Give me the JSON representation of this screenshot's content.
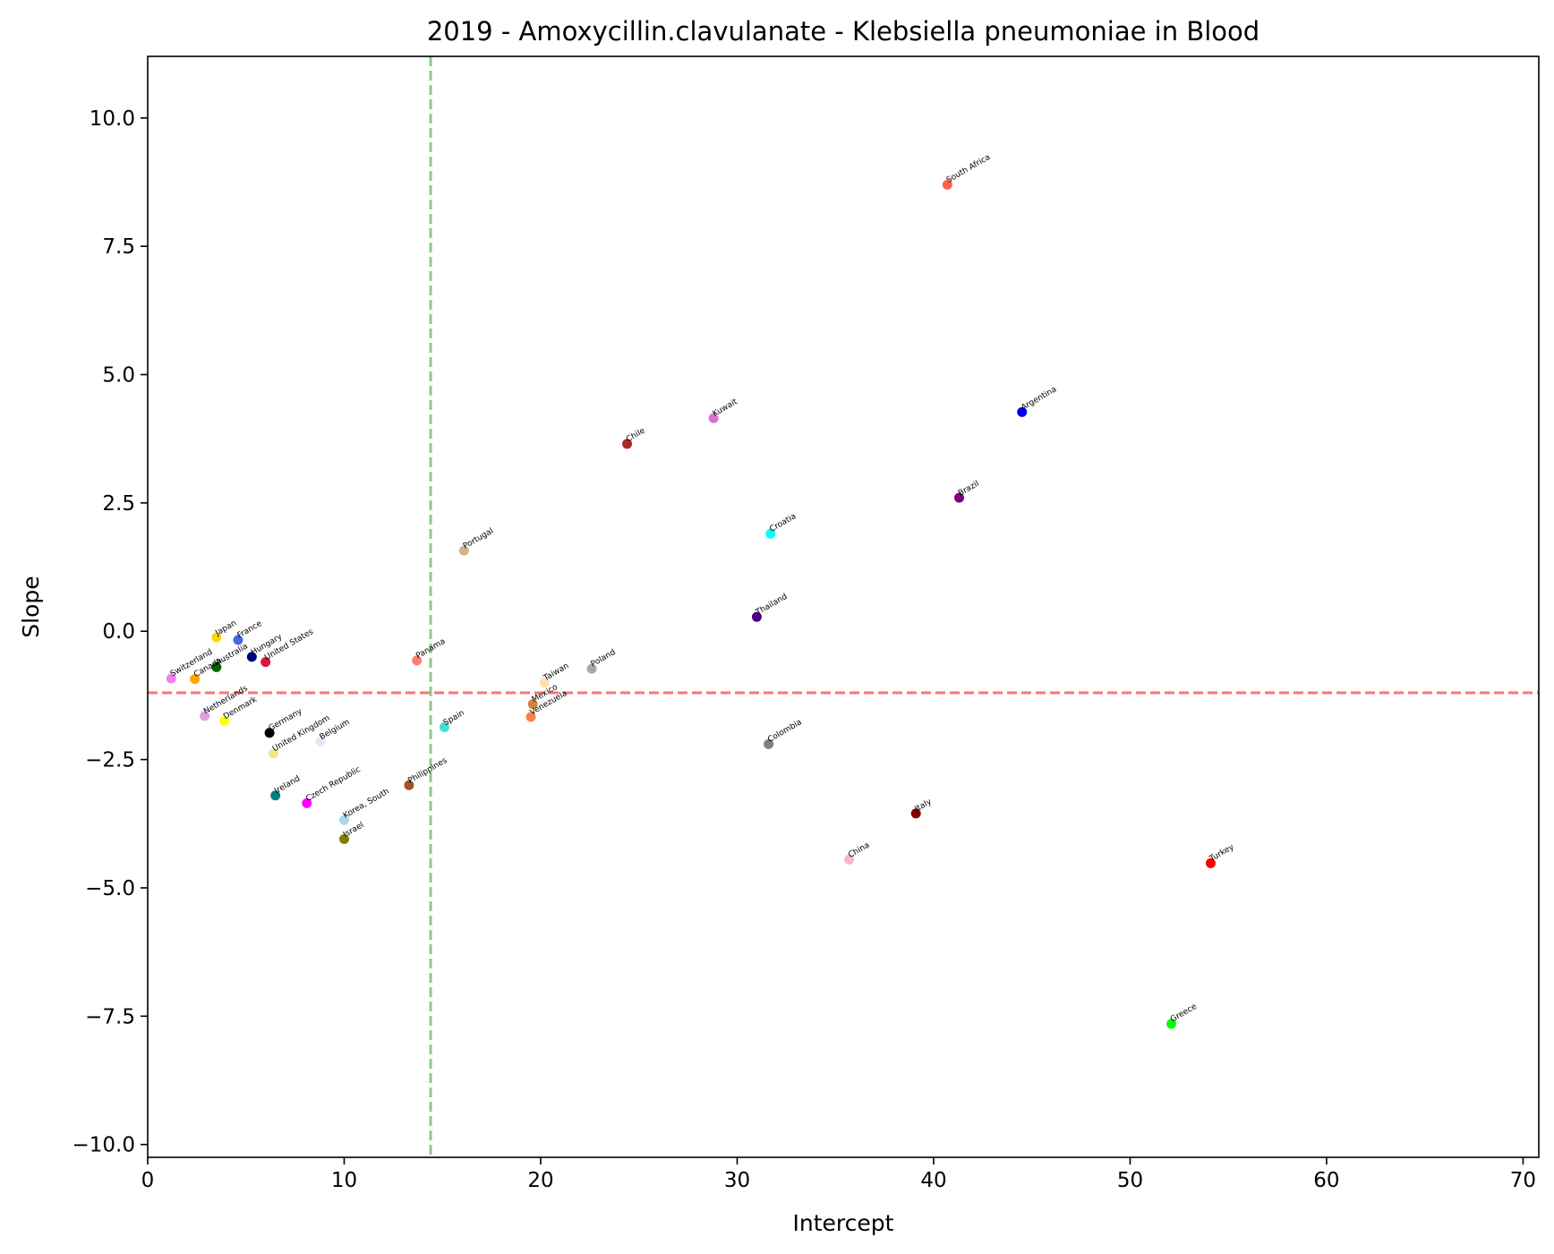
{
  "chart_data": {
    "type": "scatter",
    "title": "2019 - Amoxycillin.clavulanate - Klebsiella pneumoniae in Blood",
    "xlabel": "Intercept",
    "ylabel": "Slope",
    "xlim": [
      0,
      70.8
    ],
    "ylim": [
      -10.25,
      11.2
    ],
    "xticks": [
      0,
      10,
      20,
      30,
      40,
      50,
      60,
      70
    ],
    "xtick_labels": [
      "0",
      "10",
      "20",
      "30",
      "40",
      "50",
      "60",
      "70"
    ],
    "yticks": [
      -10.0,
      -7.5,
      -5.0,
      -2.5,
      0.0,
      2.5,
      5.0,
      7.5,
      10.0
    ],
    "ytick_labels": [
      "−10.0",
      "−7.5",
      "−5.0",
      "−2.5",
      "0.0",
      "2.5",
      "5.0",
      "7.5",
      "10.0"
    ],
    "grid": false,
    "reference_lines": [
      {
        "orientation": "vertical",
        "value": 14.4,
        "color": "#2ca02c",
        "style": "dashed"
      },
      {
        "orientation": "horizontal",
        "value": -1.2,
        "color": "#ff0000",
        "style": "dashed"
      }
    ],
    "points": [
      {
        "label": "South Africa",
        "x": 40.7,
        "y": 8.7,
        "color": "#ff6347"
      },
      {
        "label": "Argentina",
        "x": 44.5,
        "y": 4.27,
        "color": "#0000ee"
      },
      {
        "label": "Kuwait",
        "x": 28.8,
        "y": 4.15,
        "color": "#da70d6"
      },
      {
        "label": "Chile",
        "x": 24.4,
        "y": 3.65,
        "color": "#a52a2a"
      },
      {
        "label": "Brazil",
        "x": 41.3,
        "y": 2.6,
        "color": "#800080"
      },
      {
        "label": "Croatia",
        "x": 31.7,
        "y": 1.9,
        "color": "#00ffff"
      },
      {
        "label": "Portugal",
        "x": 16.1,
        "y": 1.57,
        "color": "#d2b48c"
      },
      {
        "label": "Thailand",
        "x": 31.0,
        "y": 0.28,
        "color": "#4b0082"
      },
      {
        "label": "Japan",
        "x": 3.5,
        "y": -0.12,
        "color": "#ffd700"
      },
      {
        "label": "France",
        "x": 4.6,
        "y": -0.17,
        "color": "#4169e1"
      },
      {
        "label": "Hungary",
        "x": 5.3,
        "y": -0.5,
        "color": "#000080"
      },
      {
        "label": "United States",
        "x": 6.0,
        "y": -0.6,
        "color": "#dc143c"
      },
      {
        "label": "Australia",
        "x": 3.5,
        "y": -0.7,
        "color": "#006400"
      },
      {
        "label": "Panama",
        "x": 13.7,
        "y": -0.57,
        "color": "#fa8072"
      },
      {
        "label": "Poland",
        "x": 22.6,
        "y": -0.73,
        "color": "#a9a9a9"
      },
      {
        "label": "Switzerland",
        "x": 1.2,
        "y": -0.92,
        "color": "#ee82ee"
      },
      {
        "label": "Canada",
        "x": 2.4,
        "y": -0.93,
        "color": "#ffa500"
      },
      {
        "label": "Taiwan",
        "x": 20.2,
        "y": -1.0,
        "color": "#ffdead"
      },
      {
        "label": "Mexico",
        "x": 19.6,
        "y": -1.42,
        "color": "#cd853f"
      },
      {
        "label": "Venezuela",
        "x": 19.5,
        "y": -1.67,
        "color": "#ff7f50"
      },
      {
        "label": "Netherlands",
        "x": 2.9,
        "y": -1.65,
        "color": "#dda0dd"
      },
      {
        "label": "Denmark",
        "x": 3.9,
        "y": -1.75,
        "color": "#ffff00"
      },
      {
        "label": "Spain",
        "x": 15.1,
        "y": -1.87,
        "color": "#40e0d0"
      },
      {
        "label": "Germany",
        "x": 6.2,
        "y": -1.98,
        "color": "#000000"
      },
      {
        "label": "Belgium",
        "x": 8.8,
        "y": -2.15,
        "color": "#e6e6fa"
      },
      {
        "label": "Colombia",
        "x": 31.6,
        "y": -2.2,
        "color": "#808080"
      },
      {
        "label": "United Kingdom",
        "x": 6.4,
        "y": -2.38,
        "color": "#f0e68c"
      },
      {
        "label": "Philippines",
        "x": 13.3,
        "y": -3.0,
        "color": "#a0522d"
      },
      {
        "label": "Ireland",
        "x": 6.5,
        "y": -3.2,
        "color": "#008080"
      },
      {
        "label": "Czech Republic",
        "x": 8.1,
        "y": -3.35,
        "color": "#ff00ff"
      },
      {
        "label": "Korea, South",
        "x": 10.0,
        "y": -3.68,
        "color": "#add8e6"
      },
      {
        "label": "Italy",
        "x": 39.1,
        "y": -3.55,
        "color": "#800000"
      },
      {
        "label": "Israel",
        "x": 10.0,
        "y": -4.05,
        "color": "#808000"
      },
      {
        "label": "China",
        "x": 35.7,
        "y": -4.45,
        "color": "#ffb6c1"
      },
      {
        "label": "Turkey",
        "x": 54.1,
        "y": -4.52,
        "color": "#ff0000"
      },
      {
        "label": "Greece",
        "x": 52.1,
        "y": -7.65,
        "color": "#00ff00"
      }
    ]
  }
}
